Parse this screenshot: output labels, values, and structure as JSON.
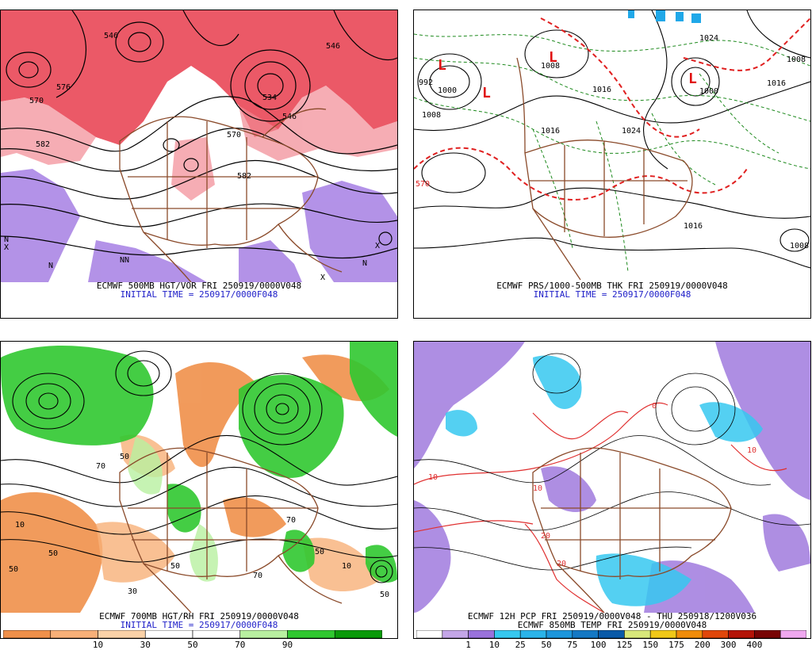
{
  "panels": [
    {
      "caption_line1": "ECMWF 500MB HGT/VOR FRI 250919/0000V048",
      "caption_line2": "INITIAL TIME = 250917/0000F048",
      "labels": [
        "546",
        "570",
        "582",
        "546",
        "570",
        "534",
        "546",
        "582",
        "576"
      ],
      "hl": [
        "N",
        "X",
        "N",
        "NN",
        "X",
        "N",
        "X"
      ]
    },
    {
      "caption_line1": "ECMWF PRS/1000-500MB THK FRI 250919/0000V048",
      "caption_line2": "INITIAL TIME = 250917/0000F048",
      "labels": [
        "992",
        "1000",
        "1008",
        "1016",
        "1024",
        "1000",
        "1008",
        "1016",
        "1024",
        "1008",
        "1016",
        "1016",
        "1008",
        "570"
      ],
      "hl": [
        "L",
        "L",
        "L",
        "L"
      ]
    },
    {
      "caption_line1": "ECMWF 700MB HGT/RH FRI 250919/0000V048",
      "caption_line2": "INITIAL TIME = 250917/0000F048",
      "labels": [
        "50",
        "70",
        "10",
        "50",
        "50",
        "30",
        "50",
        "70",
        "50",
        "10",
        "50",
        "70"
      ],
      "colorbar": {
        "colors": [
          "#f0904a",
          "#f8b078",
          "#fbd2a8",
          "#ffffff",
          "#ffffff",
          "#b8f0a0",
          "#30c830",
          "#0a9a0a"
        ],
        "labels": [
          "10",
          "30",
          "50",
          "70",
          "90"
        ]
      }
    },
    {
      "caption_line1": "ECMWF 12H PCP FRI 250919/0000V048 - THU 250918/1200V036",
      "caption_line2": "ECMWF 850MB TEMP FRI 250919/0000V048",
      "labels": [
        "20",
        "10",
        "10",
        "20",
        "10",
        "0"
      ],
      "colorbar": {
        "colors": [
          "#ffffff",
          "#c4a6e8",
          "#9a72dc",
          "#36c8f0",
          "#2ab4ea",
          "#1c96dc",
          "#1478c4",
          "#0a5aa8",
          "#d8e87a",
          "#f0c818",
          "#f08c0a",
          "#e0460a",
          "#b41408",
          "#780404",
          "#f0a8f0"
        ],
        "labels": [
          "1",
          "10",
          "25",
          "50",
          "75",
          "100",
          "125",
          "150",
          "175",
          "200",
          "300",
          "400"
        ]
      }
    }
  ]
}
